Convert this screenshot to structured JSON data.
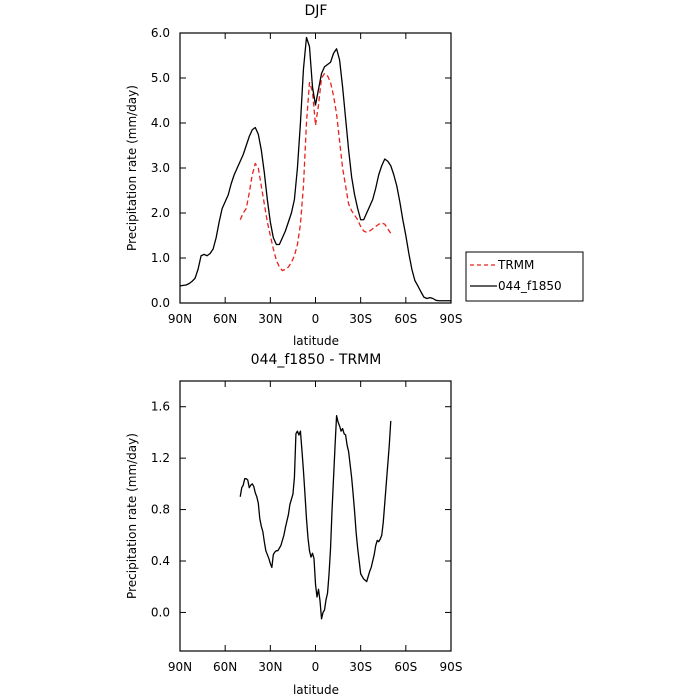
{
  "chart_data": [
    {
      "type": "line",
      "title": "DJF",
      "xlabel": "latitude",
      "ylabel": "Precipitation rate (mm/day)",
      "xlim": [
        90,
        -90
      ],
      "ylim": [
        0,
        6
      ],
      "xticks": [
        90,
        60,
        30,
        0,
        -30,
        -60,
        -90
      ],
      "xtick_labels": [
        "90N",
        "60N",
        "30N",
        "0",
        "30S",
        "60S",
        "90S"
      ],
      "yticks": [
        0,
        1,
        2,
        3,
        4,
        5,
        6
      ],
      "ytick_labels": [
        "0.0",
        "1.0",
        "2.0",
        "3.0",
        "4.0",
        "5.0",
        "6.0"
      ],
      "legend_position": "right",
      "series": [
        {
          "name": "TRMM",
          "color": "#e8231d",
          "dashed": true,
          "x": [
            50,
            48,
            46,
            44,
            42,
            40,
            38,
            36,
            34,
            32,
            30,
            28,
            26,
            24,
            22,
            20,
            18,
            16,
            14,
            12,
            10,
            8,
            6,
            4,
            2,
            0,
            -2,
            -4,
            -6,
            -8,
            -10,
            -12,
            -14,
            -16,
            -18,
            -20,
            -22,
            -24,
            -26,
            -28,
            -30,
            -32,
            -34,
            -36,
            -38,
            -40,
            -42,
            -44,
            -46,
            -48,
            -50
          ],
          "y": [
            1.85,
            2.0,
            2.1,
            2.45,
            2.85,
            3.1,
            3.0,
            2.6,
            2.2,
            1.8,
            1.5,
            1.2,
            0.95,
            0.8,
            0.72,
            0.75,
            0.8,
            0.9,
            1.05,
            1.3,
            1.75,
            2.6,
            4.0,
            4.9,
            4.7,
            3.95,
            4.4,
            5.0,
            5.1,
            5.05,
            4.9,
            4.6,
            4.2,
            3.6,
            3.0,
            2.6,
            2.2,
            2.05,
            1.95,
            1.85,
            1.7,
            1.6,
            1.57,
            1.6,
            1.65,
            1.7,
            1.75,
            1.78,
            1.75,
            1.65,
            1.55
          ]
        },
        {
          "name": "044_f1850",
          "color": "#000000",
          "dashed": false,
          "x": [
            90,
            86,
            84,
            82,
            80,
            78,
            76,
            74,
            72,
            70,
            68,
            66,
            64,
            62,
            60,
            58,
            56,
            54,
            52,
            50,
            48,
            46,
            44,
            42,
            40,
            38,
            36,
            34,
            32,
            30,
            28,
            26,
            24,
            22,
            20,
            18,
            16,
            14,
            12,
            10,
            8,
            6,
            4,
            2,
            0,
            -2,
            -4,
            -6,
            -8,
            -10,
            -12,
            -14,
            -16,
            -18,
            -20,
            -22,
            -24,
            -26,
            -28,
            -30,
            -32,
            -34,
            -36,
            -38,
            -40,
            -42,
            -44,
            -46,
            -48,
            -50,
            -52,
            -54,
            -56,
            -58,
            -60,
            -62,
            -64,
            -66,
            -68,
            -70,
            -72,
            -74,
            -76,
            -78,
            -80,
            -82,
            -84,
            -86,
            -88,
            -90
          ],
          "y": [
            0.38,
            0.4,
            0.43,
            0.48,
            0.55,
            0.75,
            1.05,
            1.08,
            1.05,
            1.1,
            1.2,
            1.45,
            1.8,
            2.1,
            2.25,
            2.4,
            2.65,
            2.85,
            3.0,
            3.15,
            3.3,
            3.5,
            3.7,
            3.85,
            3.9,
            3.75,
            3.4,
            2.9,
            2.3,
            1.8,
            1.45,
            1.3,
            1.3,
            1.45,
            1.6,
            1.8,
            2.0,
            2.3,
            3.0,
            4.0,
            5.2,
            5.9,
            5.7,
            4.8,
            4.4,
            4.75,
            5.1,
            5.25,
            5.3,
            5.35,
            5.55,
            5.65,
            5.4,
            4.8,
            4.1,
            3.4,
            2.8,
            2.4,
            2.1,
            1.85,
            1.85,
            2.0,
            2.15,
            2.3,
            2.55,
            2.85,
            3.05,
            3.2,
            3.15,
            3.05,
            2.85,
            2.6,
            2.25,
            1.85,
            1.5,
            1.1,
            0.75,
            0.5,
            0.38,
            0.25,
            0.13,
            0.1,
            0.12,
            0.1,
            0.06,
            0.05,
            0.05,
            0.05,
            0.05,
            0.05
          ]
        }
      ]
    },
    {
      "type": "line",
      "title": "044_f1850 - TRMM",
      "xlabel": "latitude",
      "ylabel": "Precipitation rate (mm/day)",
      "xlim": [
        90,
        -90
      ],
      "ylim": [
        -0.3,
        1.8
      ],
      "xticks": [
        90,
        60,
        30,
        0,
        -30,
        -60,
        -90
      ],
      "xtick_labels": [
        "90N",
        "60N",
        "30N",
        "0",
        "30S",
        "60S",
        "90S"
      ],
      "yticks": [
        0,
        0.4,
        0.8,
        1.2,
        1.6
      ],
      "ytick_labels": [
        "0.0",
        "0.4",
        "0.8",
        "1.2",
        "1.6"
      ],
      "series": [
        {
          "color": "#000000",
          "dashed": false,
          "x": [
            50,
            49,
            48,
            47,
            46,
            45,
            44,
            43,
            42,
            41,
            40,
            39,
            38,
            37,
            36,
            35,
            34,
            33,
            32,
            31,
            30,
            29,
            28,
            27,
            26,
            25,
            24,
            23,
            22,
            21,
            20,
            19,
            18,
            17,
            16,
            15,
            14,
            13,
            12,
            11,
            10,
            9,
            8,
            7,
            6,
            5,
            4,
            3,
            2,
            1,
            0,
            -1,
            -2,
            -3,
            -4,
            -5,
            -6,
            -7,
            -8,
            -9,
            -10,
            -11,
            -12,
            -13,
            -14,
            -15,
            -16,
            -17,
            -18,
            -19,
            -20,
            -21,
            -22,
            -23,
            -24,
            -25,
            -26,
            -27,
            -28,
            -29,
            -30,
            -31,
            -32,
            -33,
            -34,
            -35,
            -36,
            -37,
            -38,
            -39,
            -40,
            -41,
            -42,
            -43,
            -44,
            -45,
            -46,
            -47,
            -48,
            -49,
            -50
          ],
          "y": [
            0.9,
            0.97,
            0.99,
            1.04,
            1.04,
            1.03,
            0.97,
            0.99,
            1.0,
            0.98,
            0.93,
            0.9,
            0.85,
            0.73,
            0.67,
            0.63,
            0.55,
            0.48,
            0.45,
            0.42,
            0.38,
            0.35,
            0.45,
            0.47,
            0.48,
            0.48,
            0.5,
            0.52,
            0.56,
            0.6,
            0.66,
            0.71,
            0.76,
            0.84,
            0.88,
            0.92,
            1.05,
            1.39,
            1.41,
            1.38,
            1.41,
            1.26,
            1.1,
            0.92,
            0.73,
            0.58,
            0.48,
            0.43,
            0.46,
            0.42,
            0.22,
            0.12,
            0.18,
            0.09,
            -0.05,
            0.0,
            0.02,
            0.1,
            0.15,
            0.3,
            0.5,
            0.8,
            1.05,
            1.3,
            1.53,
            1.48,
            1.45,
            1.41,
            1.43,
            1.39,
            1.38,
            1.3,
            1.25,
            1.15,
            1.05,
            0.92,
            0.78,
            0.62,
            0.5,
            0.4,
            0.3,
            0.28,
            0.26,
            0.25,
            0.24,
            0.28,
            0.32,
            0.35,
            0.4,
            0.45,
            0.52,
            0.56,
            0.55,
            0.57,
            0.6,
            0.7,
            0.85,
            1.0,
            1.15,
            1.3,
            1.49
          ]
        }
      ]
    }
  ]
}
